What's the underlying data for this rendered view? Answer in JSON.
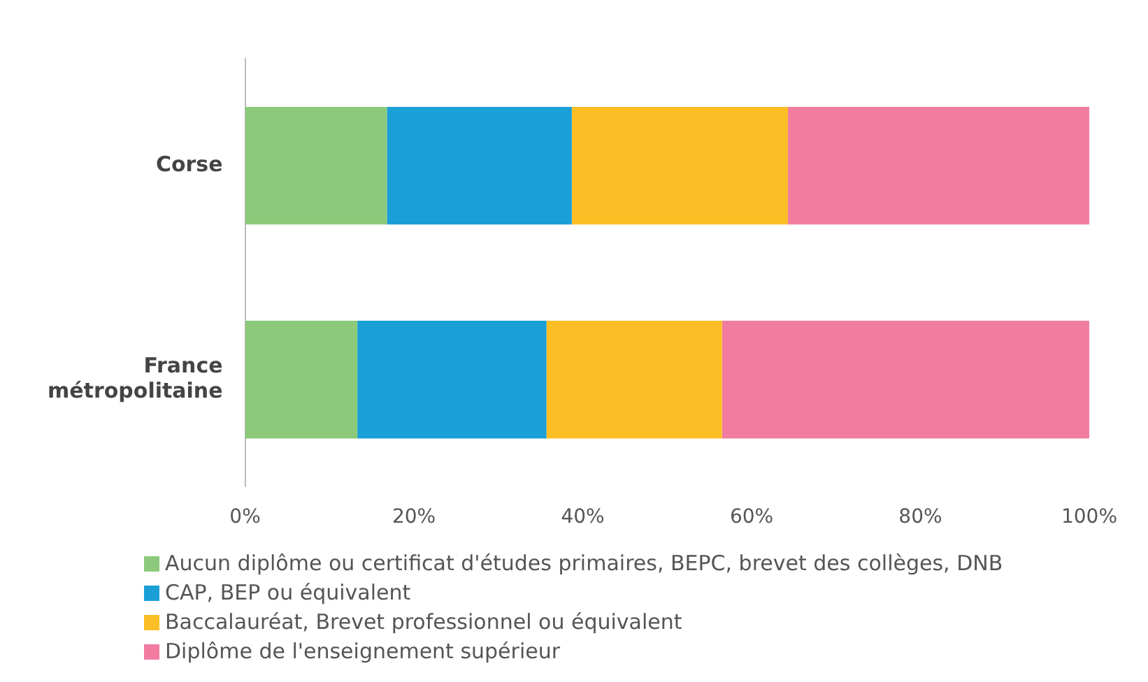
{
  "chart_data": {
    "type": "bar",
    "orientation": "horizontal",
    "stacked": true,
    "categories": [
      "Corse",
      "France métropolitaine"
    ],
    "series": [
      {
        "name": "Aucun diplôme ou certificat d'études primaires, BEPC, brevet des collèges, DNB",
        "color": "#8cc97a",
        "values": [
          16.8,
          13.3
        ]
      },
      {
        "name": "CAP, BEP ou équivalent",
        "color": "#1a9fd6",
        "values": [
          21.9,
          22.4
        ]
      },
      {
        "name": "Baccalauréat, Brevet professionnel ou équivalent",
        "color": "#fbbe25",
        "values": [
          25.6,
          20.8
        ]
      },
      {
        "name": "Diplôme de l'enseignement supérieur",
        "color": "#f27ca0",
        "values": [
          35.7,
          43.5
        ]
      }
    ],
    "xlim": [
      0,
      100
    ],
    "xticks": [
      {
        "value": 0,
        "label": "0%"
      },
      {
        "value": 20,
        "label": "20%"
      },
      {
        "value": 40,
        "label": "40%"
      },
      {
        "value": 60,
        "label": "60%"
      },
      {
        "value": 80,
        "label": "80%"
      },
      {
        "value": 100,
        "label": "100%"
      }
    ],
    "grid": false,
    "legend": "bottom"
  }
}
